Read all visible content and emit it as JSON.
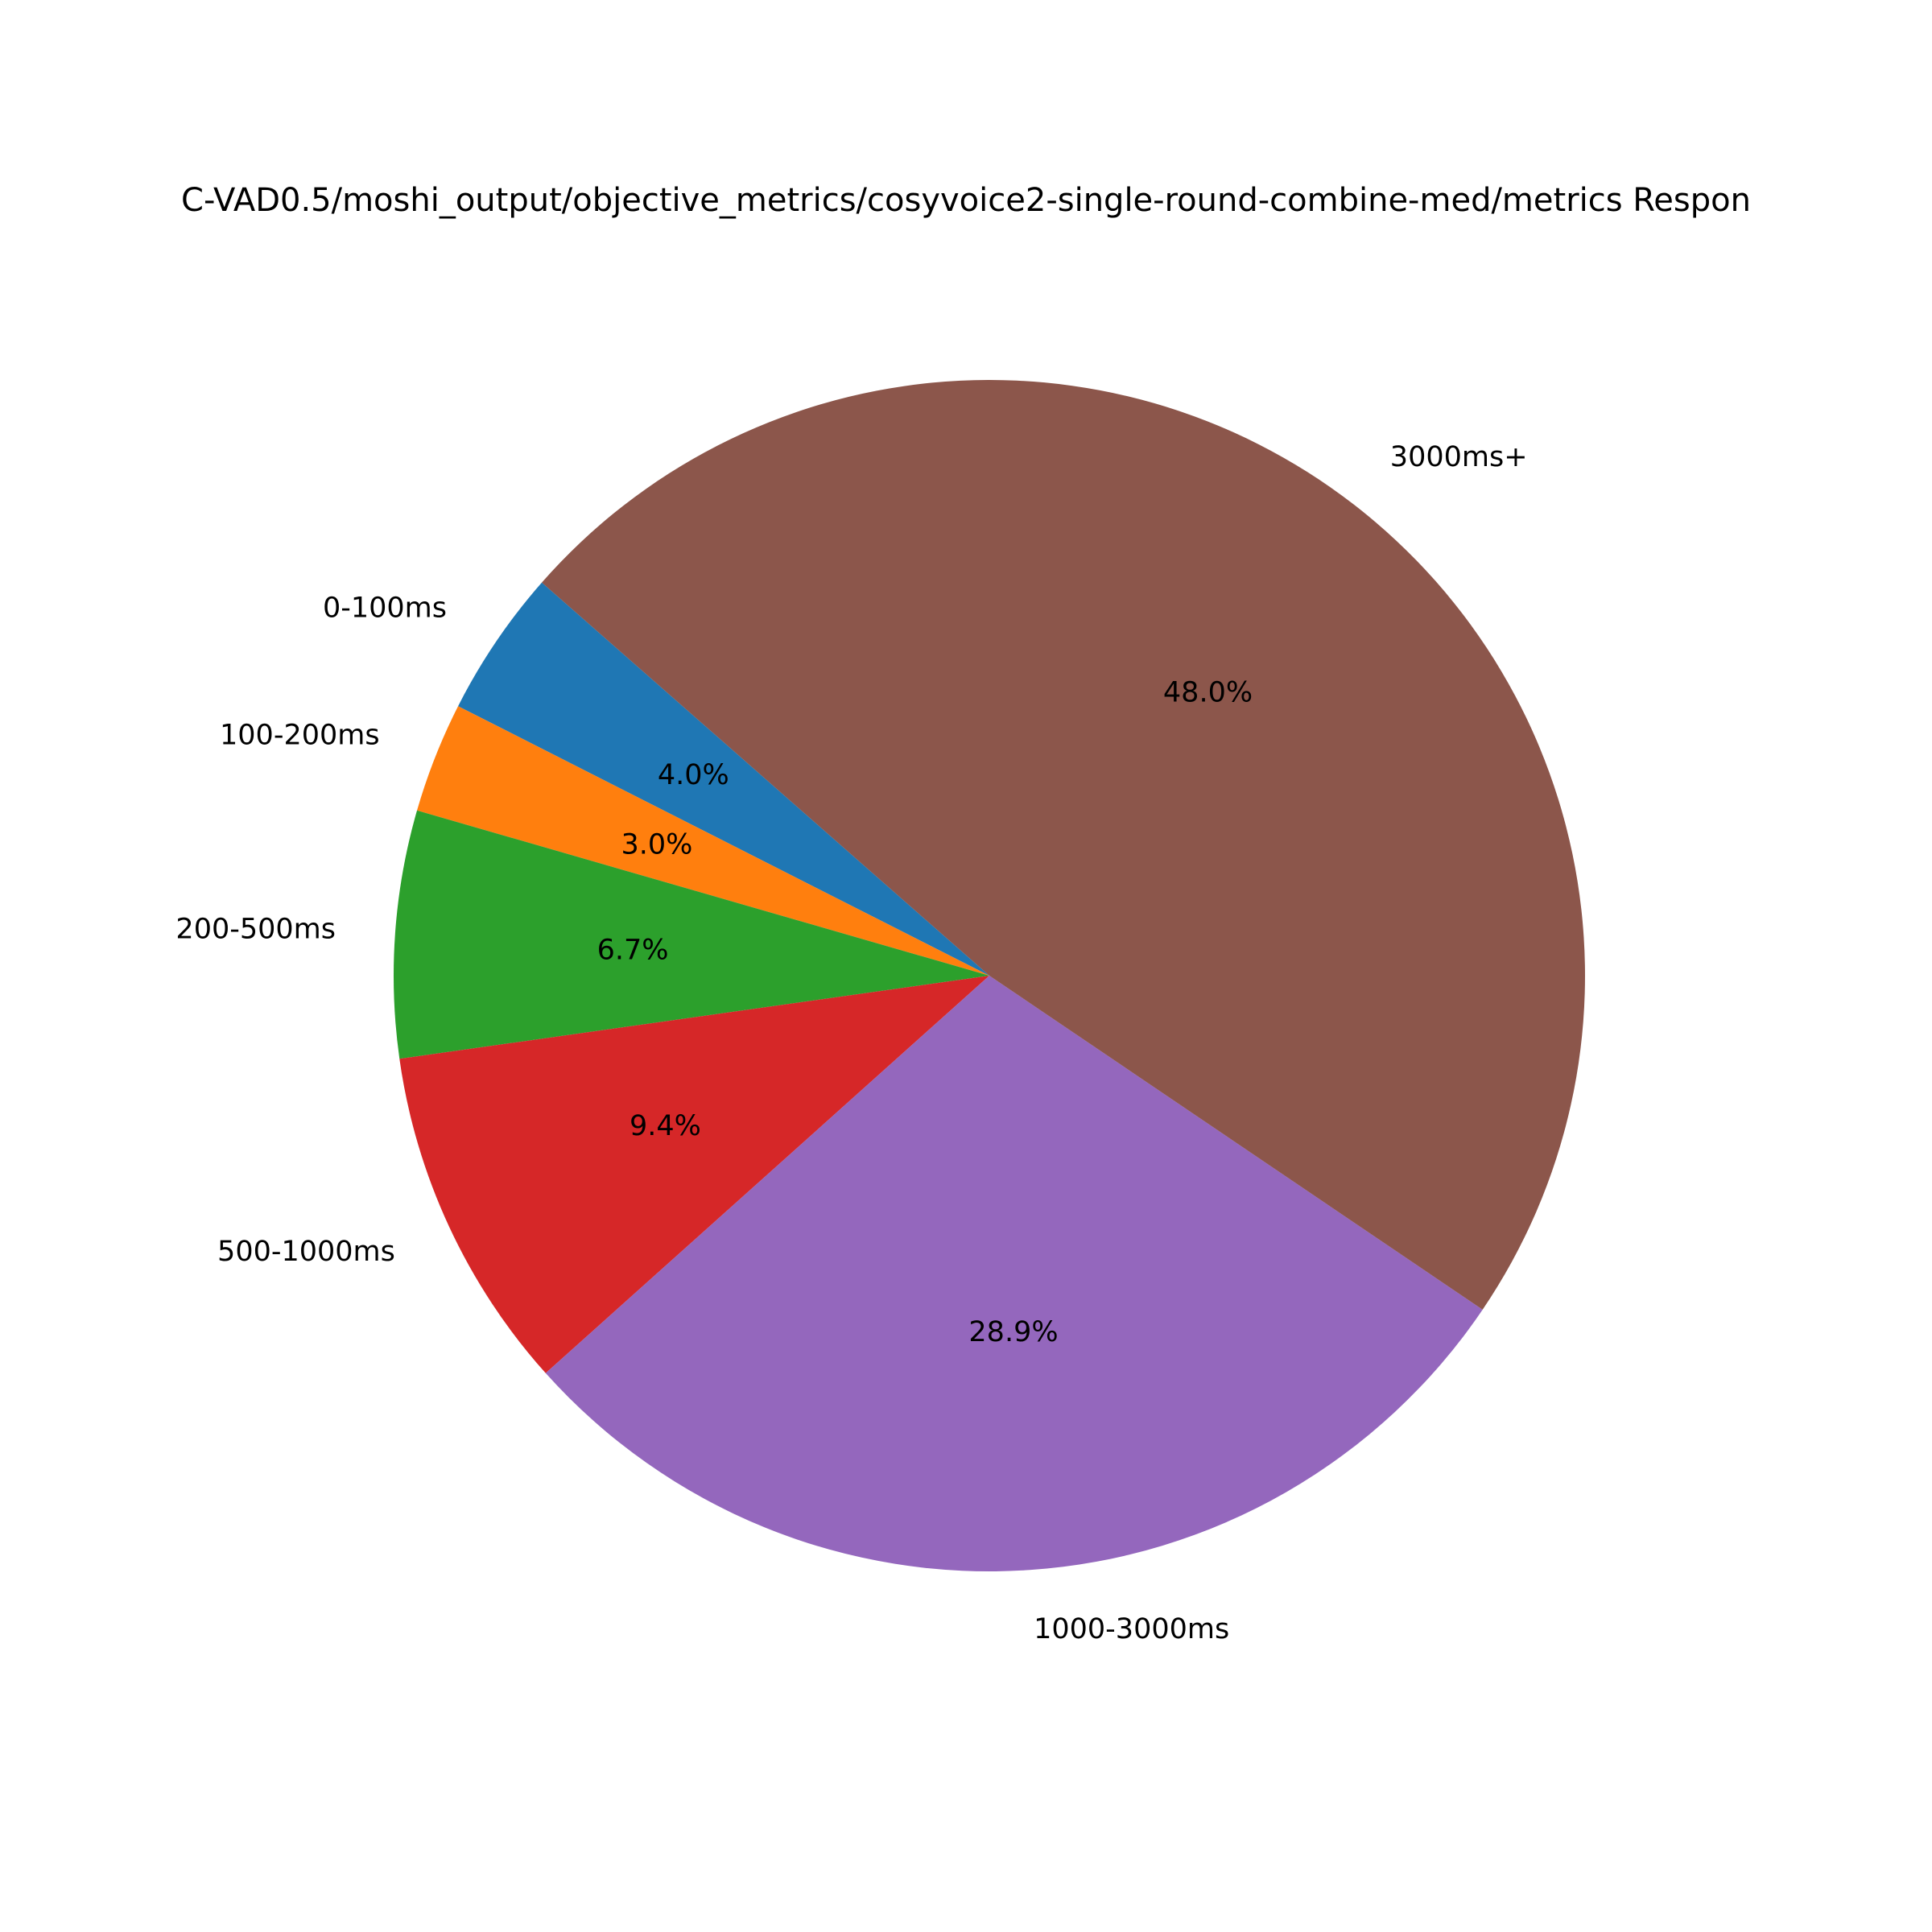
{
  "chart_data": {
    "type": "pie",
    "title": "C-VAD0.5/moshi_output/objective_metrics/cosyvoice2-single-round-combine-med/metrics Respon",
    "slices": [
      {
        "label": "0-100ms",
        "value": 4.0,
        "pct_label": "4.0%",
        "color": "#1f77b4"
      },
      {
        "label": "100-200ms",
        "value": 3.0,
        "pct_label": "3.0%",
        "color": "#ff7f0e"
      },
      {
        "label": "200-500ms",
        "value": 6.7,
        "pct_label": "6.7%",
        "color": "#2ca02c"
      },
      {
        "label": "500-1000ms",
        "value": 9.4,
        "pct_label": "9.4%",
        "color": "#d62728"
      },
      {
        "label": "1000-3000ms",
        "value": 28.9,
        "pct_label": "28.9%",
        "color": "#9467bd"
      },
      {
        "label": "3000ms+",
        "value": 48.0,
        "pct_label": "48.0%",
        "color": "#8c564b"
      }
    ],
    "start_angle_deg": 138.7,
    "direction": "counterclockwise"
  }
}
